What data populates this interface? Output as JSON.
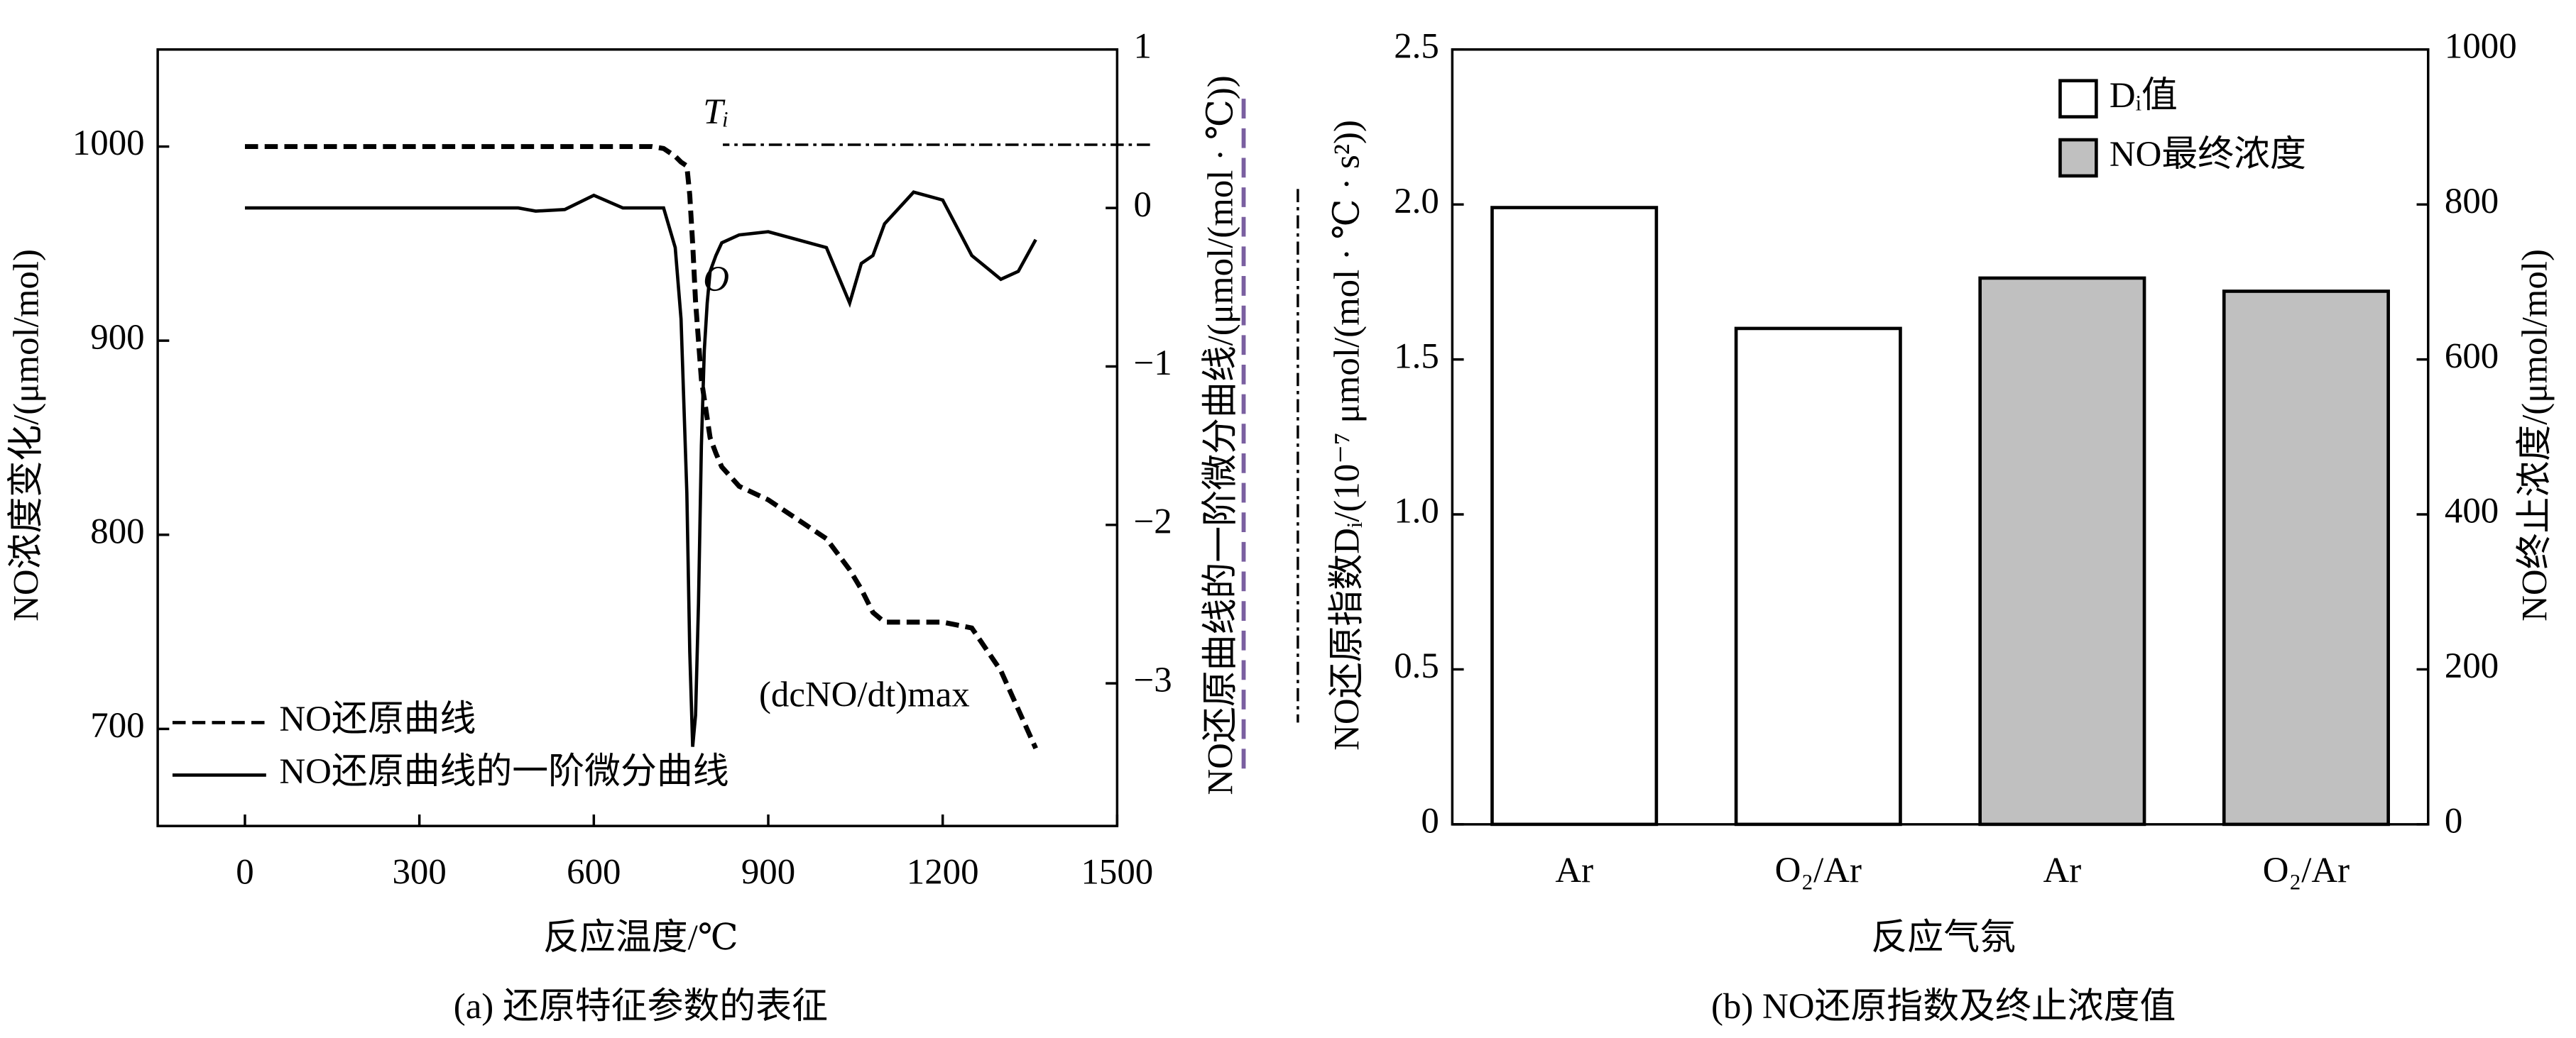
{
  "chart_data": [
    {
      "type": "line",
      "caption": "(a) 还原特征参数的表征",
      "xlabel": "反应温度/℃",
      "ylabel": "NO浓度变化/(μmol/mol)",
      "y2label": "NO还原曲线的一阶微分曲线/(μmol/(mol · ℃))",
      "annotations": [
        "Tᵢ",
        "O",
        "(dcNO/dt)max"
      ],
      "xlim": [
        -150,
        1500
      ],
      "xticks": [
        0,
        300,
        600,
        900,
        1200,
        1500
      ],
      "ylim": [
        650,
        1050
      ],
      "yticks": [
        700,
        800,
        900,
        1000
      ],
      "y2lim": [
        -3.9,
        1
      ],
      "y2ticks": [
        {
          "value": -3,
          "label": "−3"
        },
        {
          "value": -2,
          "label": "−2"
        },
        {
          "value": -1,
          "label": "−1"
        },
        0,
        1
      ],
      "legend": "lower left",
      "x": [
        0,
        100,
        200,
        300,
        400,
        470,
        500,
        550,
        600,
        650,
        700,
        720,
        740,
        750,
        760,
        765,
        770,
        775,
        780,
        785,
        790,
        795,
        800,
        810,
        820,
        850,
        900,
        950,
        1000,
        1040,
        1060,
        1080,
        1100,
        1150,
        1200,
        1250,
        1300,
        1330,
        1360
      ],
      "series": [
        {
          "name": "NO还原曲线",
          "color": "#000000",
          "dash": true,
          "values": [
            1000,
            1000,
            1000,
            1000,
            1000,
            1000,
            1000,
            1000,
            1000,
            1000,
            1000,
            999,
            995,
            992,
            990,
            975,
            950,
            920,
            900,
            880,
            870,
            860,
            850,
            842,
            835,
            825,
            818,
            808,
            798,
            782,
            772,
            760,
            755,
            755,
            755,
            752,
            730,
            710,
            690
          ]
        },
        {
          "name": "NO还原曲线的一阶微分曲线",
          "color": "#000000",
          "dash": false,
          "axis": "y2",
          "values": [
            0,
            0,
            0,
            0,
            0,
            0,
            -0.02,
            -0.01,
            0.08,
            0,
            0,
            0,
            -0.25,
            -0.7,
            -1.8,
            -2.8,
            -3.4,
            -3.2,
            -2.5,
            -1.5,
            -0.9,
            -0.6,
            -0.4,
            -0.3,
            -0.22,
            -0.17,
            -0.15,
            -0.2,
            -0.25,
            -0.6,
            -0.35,
            -0.3,
            -0.1,
            0.1,
            0.05,
            -0.3,
            -0.45,
            -0.4,
            -0.2
          ]
        }
      ]
    },
    {
      "type": "bar",
      "caption": "(b) NO还原指数及终止浓度值",
      "xlabel": "反应气氛",
      "ylabel": "NO还原指数Dᵢ/(10⁻⁷ μmol/(mol · ℃ · s²))",
      "y2label": "NO终止浓度/(μmol/mol)",
      "categories": [
        "Ar",
        "O₂/Ar",
        "Ar",
        "O₂/Ar"
      ],
      "ylim": [
        0,
        2.5
      ],
      "yticks": [
        0,
        0.5,
        {
          "value": 1,
          "label": "1.0"
        },
        1.5,
        {
          "value": 2,
          "label": "2.0"
        },
        2.5
      ],
      "y2lim": [
        0,
        1000
      ],
      "y2ticks": [
        0,
        200,
        400,
        600,
        800,
        1000
      ],
      "legend": "upper right",
      "series": [
        {
          "name": "Dᵢ值",
          "color": "#ffffff",
          "values": [
            1.99,
            1.6,
            null,
            null
          ]
        },
        {
          "name": "NO最终浓度",
          "color": "#c0c0c0",
          "axis": "y2",
          "values": [
            null,
            null,
            705,
            688
          ]
        }
      ]
    }
  ]
}
